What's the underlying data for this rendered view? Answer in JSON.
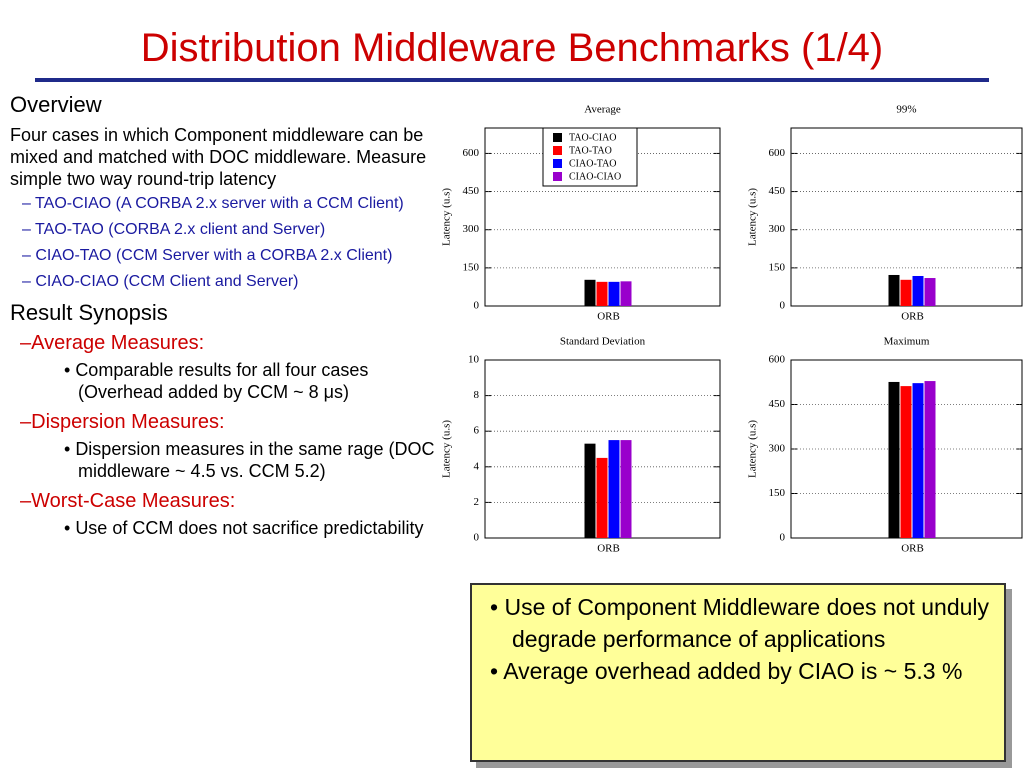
{
  "header": {
    "title": "Distribution Middleware Benchmarks (1/4)"
  },
  "overview": {
    "heading": "Overview",
    "text": "Four cases in which Component middleware can be mixed and matched with DOC middleware. Measure simple two way round-trip latency",
    "items": [
      "– TAO-CIAO (A CORBA 2.x server with a CCM Client)",
      "– TAO-TAO (CORBA 2.x client and Server)",
      "– CIAO-TAO (CCM Server with a CORBA 2.x Client)",
      "– CIAO-CIAO (CCM Client and Server)"
    ]
  },
  "result": {
    "heading": "Result Synopsis",
    "groups": [
      {
        "heading": "–Average Measures:",
        "bullets": [
          "Comparable results for all four cases (Overhead added by CCM ~ 8 μs)"
        ]
      },
      {
        "heading": "–Dispersion Measures:",
        "bullets": [
          "Dispersion measures in the same rage (DOC middleware ~ 4.5 vs. CCM 5.2)"
        ]
      },
      {
        "heading": "–Worst-Case Measures:",
        "bullets": [
          "Use of CCM does not sacrifice predictability"
        ]
      }
    ]
  },
  "callout": {
    "bullets": [
      "Use of Component Middleware does not unduly degrade performance of applications",
      " Average overhead added by CIAO is ~ 5.3 %"
    ]
  },
  "chart_data": [
    {
      "type": "bar",
      "title": "Average",
      "y_label": "Latency (u.s)",
      "categories": [
        "ORB"
      ],
      "series": [
        {
          "name": "TAO-CIAO",
          "color": "#000000",
          "values": [
            103
          ]
        },
        {
          "name": "TAO-TAO",
          "color": "#ff0000",
          "values": [
            95
          ]
        },
        {
          "name": "CIAO-TAO",
          "color": "#0000ff",
          "values": [
            95
          ]
        },
        {
          "name": "CIAO-CIAO",
          "color": "#9900cc",
          "values": [
            97
          ]
        }
      ],
      "ylim": [
        0,
        700
      ],
      "yticks": [
        0,
        150,
        300,
        450,
        600
      ],
      "grid": true,
      "legend": "top"
    },
    {
      "type": "bar",
      "title": "99%",
      "y_label": "Latency (u.s)",
      "categories": [
        "ORB"
      ],
      "series": [
        {
          "color": "#000000",
          "values": [
            122
          ]
        },
        {
          "color": "#ff0000",
          "values": [
            103
          ]
        },
        {
          "color": "#0000ff",
          "values": [
            118
          ]
        },
        {
          "color": "#9900cc",
          "values": [
            110
          ]
        }
      ],
      "ylim": [
        0,
        700
      ],
      "yticks": [
        0,
        150,
        300,
        450,
        600
      ],
      "grid": true
    },
    {
      "type": "bar",
      "title": "Standard Deviation",
      "y_label": "Latency (u.s)",
      "categories": [
        "ORB"
      ],
      "series": [
        {
          "color": "#000000",
          "values": [
            5.3
          ]
        },
        {
          "color": "#ff0000",
          "values": [
            4.5
          ]
        },
        {
          "color": "#0000ff",
          "values": [
            5.5
          ]
        },
        {
          "color": "#9900cc",
          "values": [
            5.5
          ]
        }
      ],
      "ylim": [
        0,
        10
      ],
      "yticks": [
        0,
        2,
        4,
        6,
        8,
        10
      ],
      "grid": true
    },
    {
      "type": "bar",
      "title": "Maximum",
      "y_label": "Latency (u.s)",
      "categories": [
        "ORB"
      ],
      "series": [
        {
          "color": "#000000",
          "values": [
            526
          ]
        },
        {
          "color": "#ff0000",
          "values": [
            512
          ]
        },
        {
          "color": "#0000ff",
          "values": [
            522
          ]
        },
        {
          "color": "#9900cc",
          "values": [
            529
          ]
        }
      ],
      "ylim": [
        0,
        600
      ],
      "yticks": [
        0,
        150,
        300,
        450,
        600
      ],
      "grid": true
    }
  ]
}
